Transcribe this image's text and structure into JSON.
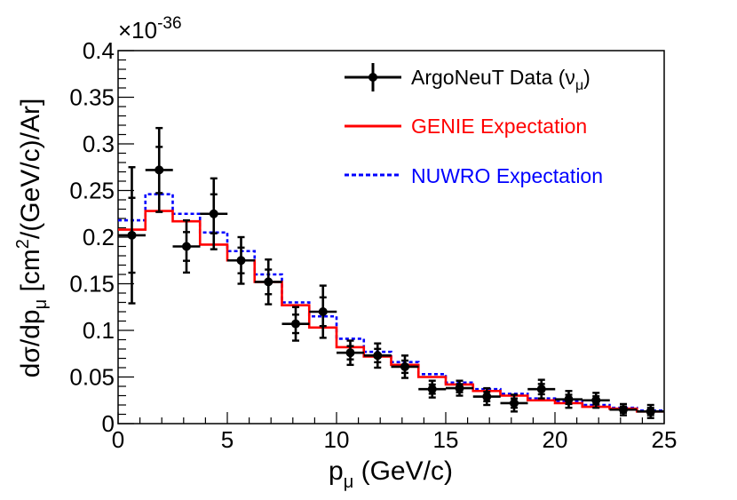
{
  "chart_data": {
    "type": "line",
    "title": "",
    "xlabel": {
      "main": "p",
      "sub": "μ",
      "unit": " (GeV/c)"
    },
    "ylabel": {
      "part1": "dσ/dp",
      "sub1": "μ",
      "part2": " [cm",
      "sup": "2",
      "part3": "/(GeV/c)/Ar]"
    },
    "exponent": {
      "base": "×10",
      "power": "-36"
    },
    "xlim": [
      0,
      25
    ],
    "ylim": [
      0,
      0.4
    ],
    "xticks": [
      0,
      5,
      10,
      15,
      20,
      25
    ],
    "xtick_labels": [
      "0",
      "5",
      "10",
      "15",
      "20",
      "25"
    ],
    "yticks": [
      0,
      0.05,
      0.1,
      0.15,
      0.2,
      0.25,
      0.3,
      0.35,
      0.4
    ],
    "ytick_labels": [
      "0",
      "0.05",
      "0.1",
      "0.15",
      "0.2",
      "0.25",
      "0.3",
      "0.35",
      "0.4"
    ],
    "legend": {
      "position": "top-right",
      "data_label": "ArgoNeuT Data (ν",
      "data_sub": "μ",
      "data_close": ")",
      "genie_label": "GENIE Expectation",
      "nuwro_label": "NUWRO Expectation"
    },
    "bin_edges": [
      0,
      1.25,
      2.5,
      3.75,
      5,
      6.25,
      7.5,
      8.75,
      10,
      11.25,
      12.5,
      13.75,
      15,
      16.25,
      17.5,
      18.75,
      20,
      21.25,
      22.5,
      23.75,
      25
    ],
    "series": [
      {
        "name": "ArgoNeuT Data",
        "type": "points",
        "color": "#000000",
        "x": [
          0.63,
          1.88,
          3.13,
          4.38,
          5.63,
          6.88,
          8.13,
          9.38,
          10.63,
          11.88,
          13.13,
          14.38,
          15.63,
          16.88,
          18.13,
          19.38,
          20.63,
          21.88,
          23.13,
          24.38
        ],
        "x_err": [
          0.63,
          0.63,
          0.63,
          0.63,
          0.63,
          0.63,
          0.63,
          0.63,
          0.63,
          0.63,
          0.63,
          0.63,
          0.63,
          0.63,
          0.63,
          0.63,
          0.63,
          0.63,
          0.63,
          0.63
        ],
        "y": [
          0.202,
          0.272,
          0.19,
          0.225,
          0.175,
          0.152,
          0.107,
          0.12,
          0.076,
          0.073,
          0.061,
          0.037,
          0.038,
          0.029,
          0.022,
          0.037,
          0.026,
          0.025,
          0.015,
          0.013
        ],
        "y_err": [
          0.073,
          0.045,
          0.028,
          0.038,
          0.025,
          0.024,
          0.018,
          0.028,
          0.013,
          0.013,
          0.012,
          0.009,
          0.008,
          0.009,
          0.009,
          0.01,
          0.009,
          0.008,
          0.006,
          0.007
        ]
      },
      {
        "name": "GENIE Expectation",
        "type": "step",
        "color": "#ff0000",
        "values": [
          0.208,
          0.228,
          0.217,
          0.192,
          0.175,
          0.152,
          0.127,
          0.103,
          0.082,
          0.072,
          0.063,
          0.05,
          0.042,
          0.035,
          0.03,
          0.025,
          0.022,
          0.018,
          0.016,
          0.013
        ]
      },
      {
        "name": "NUWRO Expectation",
        "type": "step",
        "color": "#0000ff",
        "values": [
          0.218,
          0.246,
          0.225,
          0.205,
          0.185,
          0.16,
          0.13,
          0.115,
          0.091,
          0.077,
          0.066,
          0.053,
          0.044,
          0.037,
          0.032,
          0.027,
          0.024,
          0.02,
          0.017,
          0.014
        ]
      }
    ]
  }
}
